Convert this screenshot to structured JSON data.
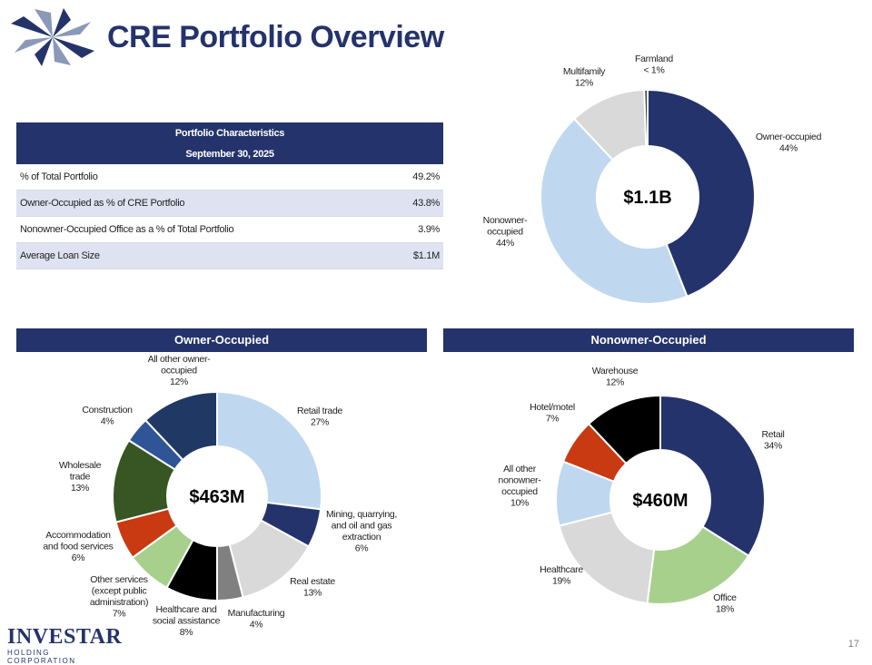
{
  "title": "CRE Portfolio Overview",
  "company": {
    "name": "INVESTAR",
    "sub": "HOLDING CORPORATION"
  },
  "page_number": "17",
  "table": {
    "header_1": "Portfolio Characteristics",
    "header_2": "September 30, 2025",
    "rows": [
      {
        "label": "% of Total Portfolio",
        "value": "49.2%"
      },
      {
        "label": "Owner-Occupied as % of CRE Portfolio",
        "value": "43.8%"
      },
      {
        "label": "Nonowner-Occupied Office as a % of Total Portfolio",
        "value": "3.9%"
      },
      {
        "label": "Average Loan Size",
        "value": "$1.1M"
      }
    ]
  },
  "bands": {
    "owner": "Owner-Occupied",
    "nonowner": "Nonowner-Occupied"
  },
  "chart_data": [
    {
      "type": "pie",
      "center_label": "$1.1B",
      "slices": [
        {
          "name": "Owner-occupied",
          "label_lines": [
            "Owner-occupied",
            "44%"
          ],
          "value": 44,
          "color": "#24336b"
        },
        {
          "name": "Nonowner-occupied",
          "label_lines": [
            "Nonowner-",
            "occupied",
            "44%"
          ],
          "value": 44,
          "color": "#c0d8ef"
        },
        {
          "name": "Multifamily",
          "label_lines": [
            "Multifamily",
            "12%"
          ],
          "value": 11.5,
          "color": "#d9d9d9"
        },
        {
          "name": "Farmland",
          "label_lines": [
            "Farmland",
            "< 1%"
          ],
          "value": 0.5,
          "color": "#404040"
        }
      ]
    },
    {
      "type": "pie",
      "center_label": "$463M",
      "slices": [
        {
          "name": "Retail trade",
          "label_lines": [
            "Retail trade",
            "27%"
          ],
          "value": 27,
          "color": "#c0d8ef"
        },
        {
          "name": "Mining, quarrying, and oil and gas extraction",
          "label_lines": [
            "Mining, quarrying,",
            "and oil and gas",
            "extraction",
            "6%"
          ],
          "value": 6,
          "color": "#24336b"
        },
        {
          "name": "Real estate",
          "label_lines": [
            "Real estate",
            "13%"
          ],
          "value": 13,
          "color": "#d9d9d9"
        },
        {
          "name": "Manufacturing",
          "label_lines": [
            "Manufacturing",
            "4%"
          ],
          "value": 4,
          "color": "#808080"
        },
        {
          "name": "Healthcare and social assistance",
          "label_lines": [
            "Healthcare and",
            "social assistance",
            "8%"
          ],
          "value": 8,
          "color": "#000000"
        },
        {
          "name": "Other services (except public administration)",
          "label_lines": [
            "Other services",
            "(except public",
            "administration)",
            "7%"
          ],
          "value": 7,
          "color": "#a8d08d"
        },
        {
          "name": "Accommodation and food services",
          "label_lines": [
            "Accommodation",
            "and food services",
            "6%"
          ],
          "value": 6,
          "color": "#c93a12"
        },
        {
          "name": "Wholesale trade",
          "label_lines": [
            "Wholesale",
            "trade",
            "13%"
          ],
          "value": 13,
          "color": "#375623"
        },
        {
          "name": "Construction",
          "label_lines": [
            "Construction",
            "4%"
          ],
          "value": 4,
          "color": "#2f5597"
        },
        {
          "name": "All other owner-occupied",
          "label_lines": [
            "All other owner-",
            "occupied",
            "12%"
          ],
          "value": 12,
          "color": "#203864"
        }
      ]
    },
    {
      "type": "pie",
      "center_label": "$460M",
      "slices": [
        {
          "name": "Retail",
          "label_lines": [
            "Retail",
            "34%"
          ],
          "value": 34,
          "color": "#24336b"
        },
        {
          "name": "Office",
          "label_lines": [
            "Office",
            "18%"
          ],
          "value": 18,
          "color": "#a8d08d"
        },
        {
          "name": "Healthcare",
          "label_lines": [
            "Healthcare",
            "19%"
          ],
          "value": 19,
          "color": "#d9d9d9"
        },
        {
          "name": "All other nonowner-occupied",
          "label_lines": [
            "All other",
            "nonowner-",
            "occupied",
            "10%"
          ],
          "value": 10,
          "color": "#c0d8ef"
        },
        {
          "name": "Hotel/motel",
          "label_lines": [
            "Hotel/motel",
            "7%"
          ],
          "value": 7,
          "color": "#c93a12"
        },
        {
          "name": "Warehouse",
          "label_lines": [
            "Warehouse",
            "12%"
          ],
          "value": 12,
          "color": "#000000"
        }
      ]
    }
  ]
}
